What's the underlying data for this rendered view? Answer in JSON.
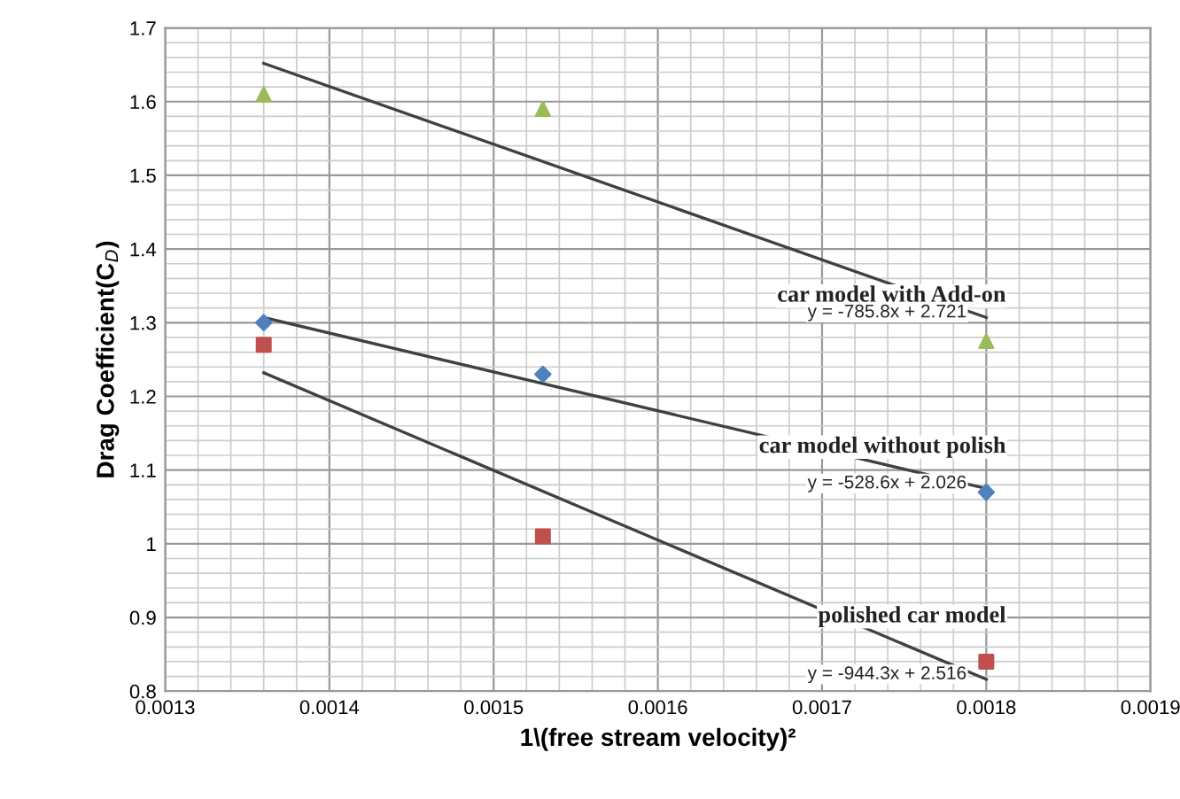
{
  "chart_data": {
    "type": "scatter",
    "xlabel": "1\\(free stream velocity)²",
    "ylabel": "Drag Coefficient(C$_{D}$)",
    "series": [
      {
        "name": "car model with Add-on",
        "color": "#9bbb59",
        "marker": "triangle",
        "x": [
          0.00136,
          0.00153,
          0.0018
        ],
        "values": [
          1.61,
          1.59,
          1.275
        ]
      },
      {
        "name": "car model without polish",
        "color": "#4f81bd",
        "marker": "diamond",
        "x": [
          0.00136,
          0.00153,
          0.0018
        ],
        "values": [
          1.3,
          1.23,
          1.07
        ]
      },
      {
        "name": "polished car model",
        "color": "#c0504d",
        "marker": "square",
        "x": [
          0.00136,
          0.00153,
          0.0018
        ],
        "values": [
          1.27,
          1.01,
          0.84
        ]
      },
      {
        "type": "line",
        "color": "#404040",
        "x": [
          0.00136,
          0.0018
        ],
        "values": [
          1.652,
          1.307
        ]
      },
      {
        "type": "line",
        "color": "#404040",
        "x": [
          0.00136,
          0.0018
        ],
        "values": [
          1.307,
          1.075
        ]
      },
      {
        "type": "line",
        "color": "#404040",
        "x": [
          0.00136,
          0.0018
        ],
        "values": [
          1.232,
          0.816
        ]
      }
    ],
    "annotations": [
      "y = -785.8x + 2.721",
      "y = -528.6x + 2.026",
      "y = -944.3x + 2.516"
    ],
    "xlim": [
      0.0013,
      0.0019
    ],
    "xticks": [
      0.0013,
      0.0014,
      0.0015,
      0.0016,
      0.0017,
      0.0018,
      0.0019
    ],
    "ylim": [
      0.8,
      1.7
    ],
    "yticks": [
      0.8,
      {
        "value": 0.9,
        "label": "0.9"
      },
      1,
      1.1,
      1.2,
      1.3,
      1.4,
      1.5,
      1.6,
      1.7
    ],
    "grid": true,
    "legend": false
  }
}
